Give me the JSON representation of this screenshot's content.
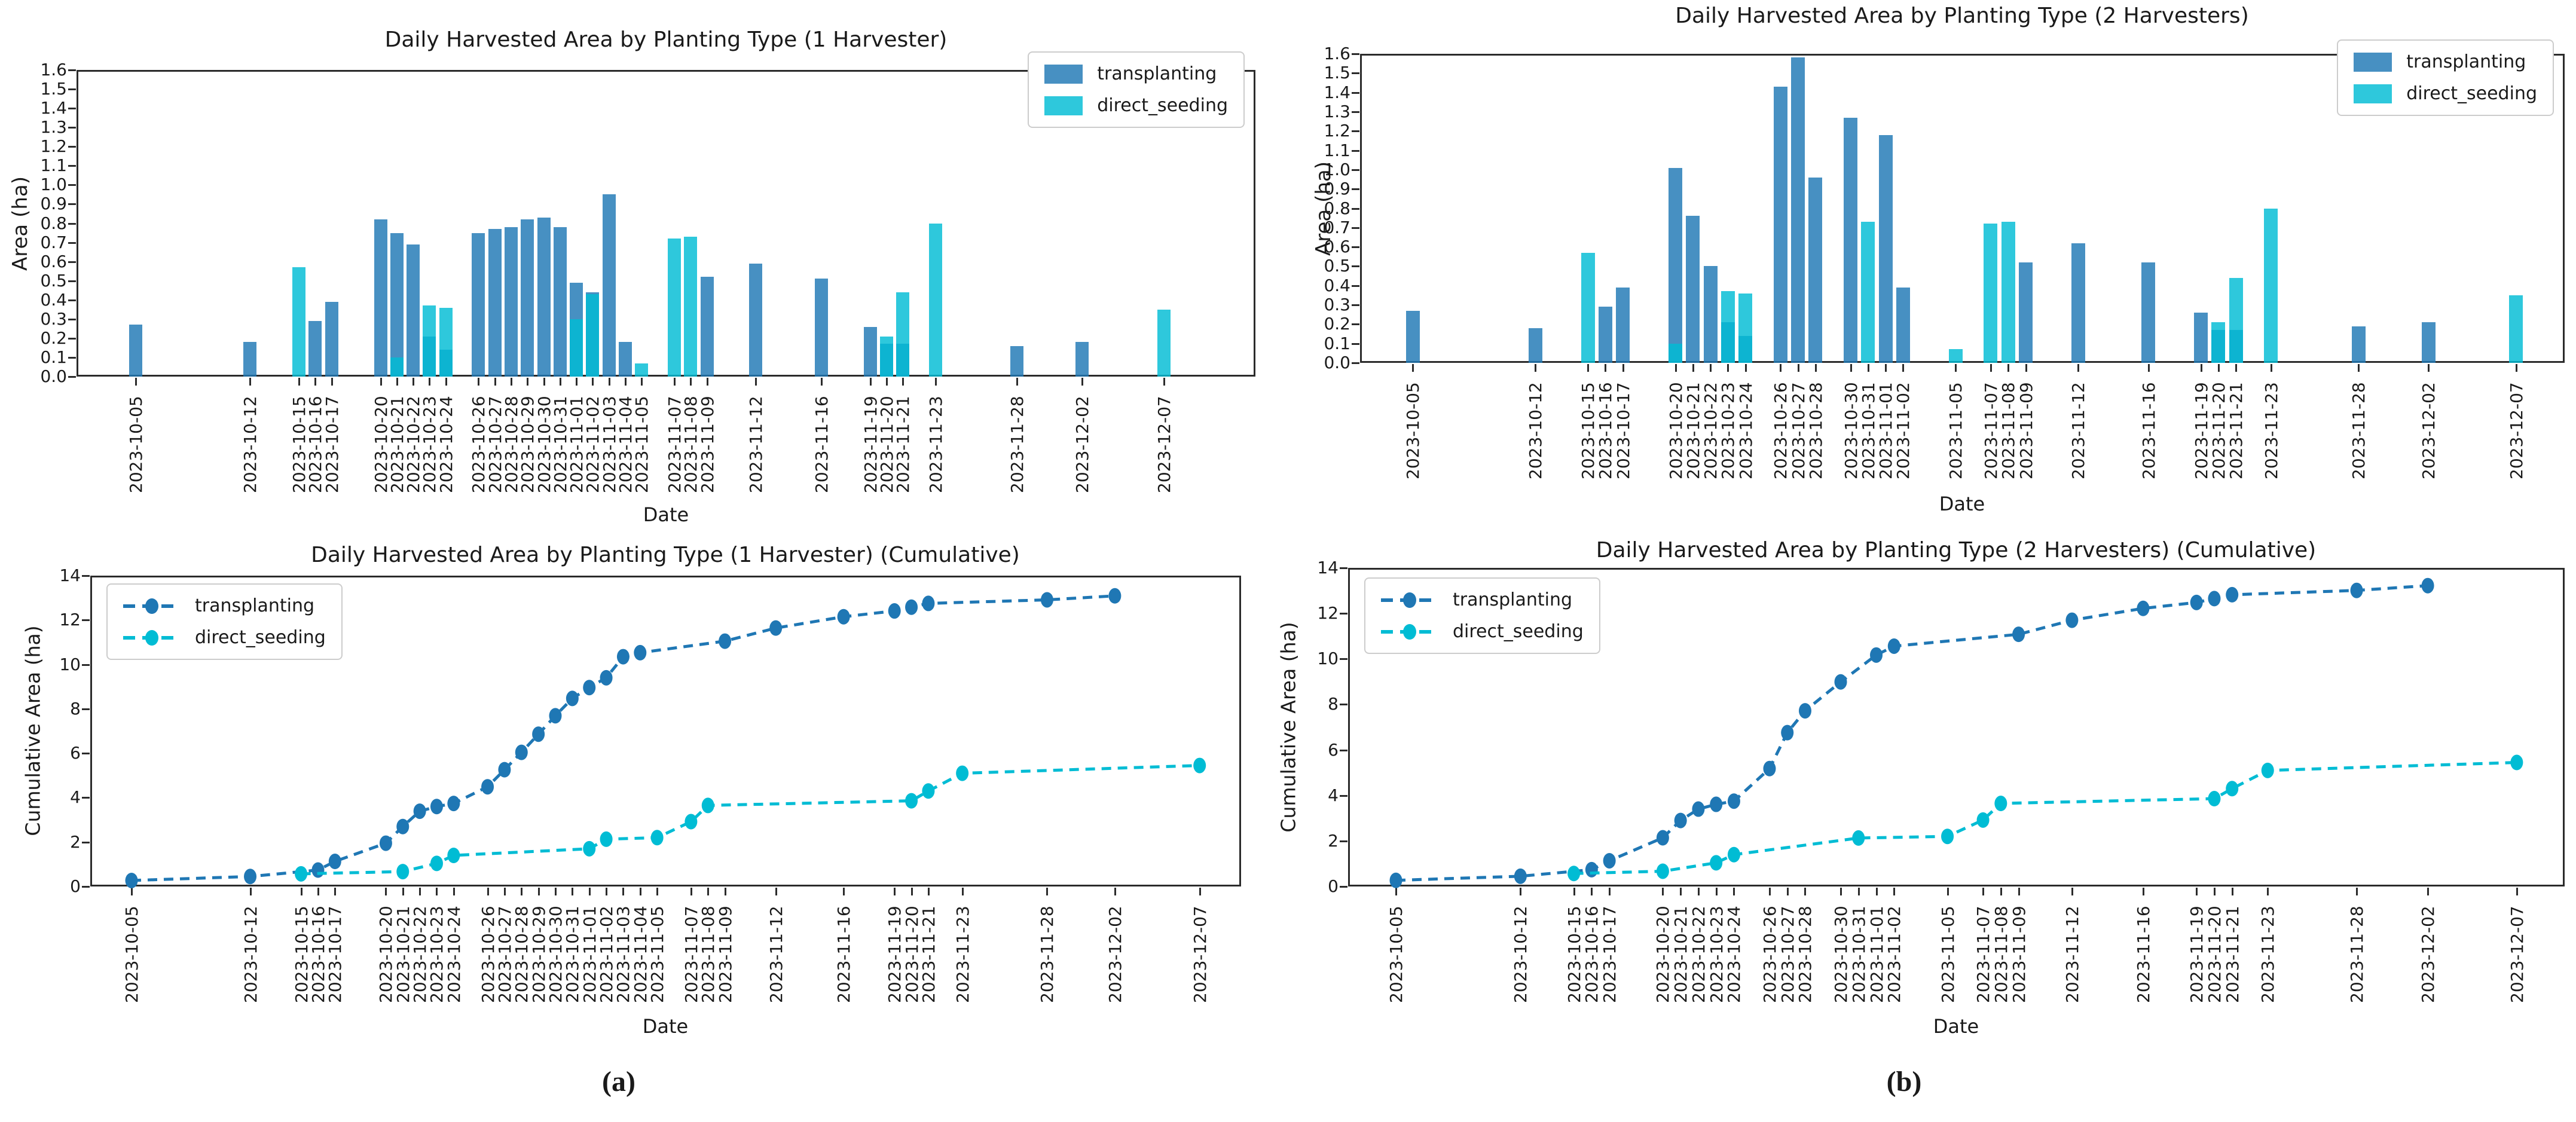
{
  "figure": {
    "captions": [
      "(a)",
      "(b)"
    ],
    "background": "#ffffff",
    "colors": {
      "transplanting": "#1f77b4",
      "direct_seeding": "#00bcd4"
    }
  },
  "chart_data": [
    {
      "type": "bar",
      "title": "Daily Harvested Area by Planting Type (1 Harvester)",
      "xlabel": "Date",
      "ylabel": "Area (ha)",
      "ylim": [
        0,
        1.6
      ],
      "yticks": [
        "0.0",
        "0.1",
        "0.2",
        "0.3",
        "0.4",
        "0.5",
        "0.6",
        "0.7",
        "0.8",
        "0.9",
        "1.0",
        "1.1",
        "1.2",
        "1.3",
        "1.4",
        "1.5",
        "1.6"
      ],
      "legend_position": "top-right",
      "bar_mode": "overlay",
      "bar_opacity": 0.82,
      "dates": [
        "2023-10-05",
        "2023-10-12",
        "2023-10-15",
        "2023-10-16",
        "2023-10-17",
        "2023-10-20",
        "2023-10-21",
        "2023-10-22",
        "2023-10-23",
        "2023-10-24",
        "2023-10-26",
        "2023-10-27",
        "2023-10-28",
        "2023-10-29",
        "2023-10-30",
        "2023-10-31",
        "2023-11-01",
        "2023-11-02",
        "2023-11-03",
        "2023-11-04",
        "2023-11-05",
        "2023-11-07",
        "2023-11-08",
        "2023-11-09",
        "2023-11-12",
        "2023-11-16",
        "2023-11-19",
        "2023-11-20",
        "2023-11-21",
        "2023-11-23",
        "2023-11-28",
        "2023-12-02",
        "2023-12-07"
      ],
      "series": [
        {
          "name": "transplanting",
          "color": "#1f77b4",
          "values": [
            0.27,
            0.18,
            0,
            0.29,
            0.39,
            0.82,
            0.75,
            0.69,
            0.21,
            0.14,
            0.75,
            0.77,
            0.78,
            0.82,
            0.83,
            0.78,
            0.49,
            0.44,
            0.95,
            0.18,
            0,
            0,
            0,
            0.52,
            0.59,
            0.51,
            0.26,
            0.17,
            0.17,
            0,
            0.16,
            0.18,
            0
          ]
        },
        {
          "name": "direct_seeding",
          "color": "#00bcd4",
          "values": [
            0,
            0,
            0.57,
            0,
            0,
            0,
            0.1,
            0,
            0.37,
            0.36,
            0,
            0,
            0,
            0,
            0,
            0,
            0.3,
            0.43,
            0,
            0,
            0.07,
            0.72,
            0.73,
            0,
            0,
            0,
            0,
            0.21,
            0.44,
            0.8,
            0,
            0,
            0.35
          ]
        }
      ]
    },
    {
      "type": "bar",
      "title": "Daily Harvested Area by Planting Type (2 Harvesters)",
      "xlabel": "Date",
      "ylabel": "Area (ha)",
      "ylim": [
        0,
        1.6
      ],
      "yticks": [
        "0.0",
        "0.1",
        "0.2",
        "0.3",
        "0.4",
        "0.5",
        "0.6",
        "0.7",
        "0.8",
        "0.9",
        "1.0",
        "1.1",
        "1.2",
        "1.3",
        "1.4",
        "1.5",
        "1.6"
      ],
      "legend_position": "top-right",
      "bar_mode": "overlay",
      "bar_opacity": 0.82,
      "dates": [
        "2023-10-05",
        "2023-10-12",
        "2023-10-15",
        "2023-10-16",
        "2023-10-17",
        "2023-10-20",
        "2023-10-21",
        "2023-10-22",
        "2023-10-23",
        "2023-10-24",
        "2023-10-26",
        "2023-10-27",
        "2023-10-28",
        "2023-10-30",
        "2023-10-31",
        "2023-11-01",
        "2023-11-02",
        "2023-11-05",
        "2023-11-07",
        "2023-11-08",
        "2023-11-09",
        "2023-11-12",
        "2023-11-16",
        "2023-11-19",
        "2023-11-20",
        "2023-11-21",
        "2023-11-23",
        "2023-11-28",
        "2023-12-02",
        "2023-12-07"
      ],
      "series": [
        {
          "name": "transplanting",
          "color": "#1f77b4",
          "values": [
            0.27,
            0.18,
            0,
            0.29,
            0.39,
            1.01,
            0.76,
            0.5,
            0.21,
            0.14,
            1.43,
            1.58,
            0.96,
            1.27,
            0,
            1.18,
            0.39,
            0,
            0,
            0,
            0.52,
            0.62,
            0.52,
            0.26,
            0.17,
            0.17,
            0,
            0.19,
            0.21,
            0
          ]
        },
        {
          "name": "direct_seeding",
          "color": "#00bcd4",
          "values": [
            0,
            0,
            0.57,
            0,
            0,
            0.1,
            0,
            0,
            0.37,
            0.36,
            0,
            0,
            0,
            0,
            0.73,
            0,
            0,
            0.07,
            0.72,
            0.73,
            0,
            0,
            0,
            0,
            0.21,
            0.44,
            0.8,
            0,
            0,
            0.35
          ]
        }
      ]
    },
    {
      "type": "line",
      "title": "Daily Harvested Area by Planting Type (1 Harvester) (Cumulative)",
      "xlabel": "Date",
      "ylabel": "Cumulative Area (ha)",
      "ylim": [
        0,
        14
      ],
      "yticks": [
        "0",
        "2",
        "4",
        "6",
        "8",
        "10",
        "12",
        "14"
      ],
      "legend_position": "top-left",
      "line_style": "dashed",
      "marker": "circle",
      "dates": [
        "2023-10-05",
        "2023-10-12",
        "2023-10-15",
        "2023-10-16",
        "2023-10-17",
        "2023-10-20",
        "2023-10-21",
        "2023-10-22",
        "2023-10-23",
        "2023-10-24",
        "2023-10-26",
        "2023-10-27",
        "2023-10-28",
        "2023-10-29",
        "2023-10-30",
        "2023-10-31",
        "2023-11-01",
        "2023-11-02",
        "2023-11-03",
        "2023-11-04",
        "2023-11-05",
        "2023-11-07",
        "2023-11-08",
        "2023-11-09",
        "2023-11-12",
        "2023-11-16",
        "2023-11-19",
        "2023-11-20",
        "2023-11-21",
        "2023-11-23",
        "2023-11-28",
        "2023-12-02",
        "2023-12-07"
      ],
      "series": [
        {
          "name": "transplanting",
          "color": "#1f77b4",
          "points": [
            [
              "2023-10-05",
              0.27
            ],
            [
              "2023-10-12",
              0.45
            ],
            [
              "2023-10-16",
              0.74
            ],
            [
              "2023-10-17",
              1.13
            ],
            [
              "2023-10-20",
              1.95
            ],
            [
              "2023-10-21",
              2.7
            ],
            [
              "2023-10-22",
              3.39
            ],
            [
              "2023-10-23",
              3.6
            ],
            [
              "2023-10-24",
              3.74
            ],
            [
              "2023-10-26",
              4.49
            ],
            [
              "2023-10-27",
              5.26
            ],
            [
              "2023-10-28",
              6.04
            ],
            [
              "2023-10-29",
              6.86
            ],
            [
              "2023-10-30",
              7.69
            ],
            [
              "2023-10-31",
              8.47
            ],
            [
              "2023-11-01",
              8.96
            ],
            [
              "2023-11-02",
              9.4
            ],
            [
              "2023-11-03",
              10.35
            ],
            [
              "2023-11-04",
              10.53
            ],
            [
              "2023-11-09",
              11.05
            ],
            [
              "2023-11-12",
              11.64
            ],
            [
              "2023-11-16",
              12.15
            ],
            [
              "2023-11-19",
              12.41
            ],
            [
              "2023-11-20",
              12.58
            ],
            [
              "2023-11-21",
              12.75
            ],
            [
              "2023-11-28",
              12.91
            ],
            [
              "2023-12-02",
              13.09
            ]
          ]
        },
        {
          "name": "direct_seeding",
          "color": "#00bcd4",
          "points": [
            [
              "2023-10-15",
              0.57
            ],
            [
              "2023-10-21",
              0.67
            ],
            [
              "2023-10-23",
              1.04
            ],
            [
              "2023-10-24",
              1.4
            ],
            [
              "2023-11-01",
              1.7
            ],
            [
              "2023-11-02",
              2.13
            ],
            [
              "2023-11-05",
              2.2
            ],
            [
              "2023-11-07",
              2.92
            ],
            [
              "2023-11-08",
              3.65
            ],
            [
              "2023-11-20",
              3.86
            ],
            [
              "2023-11-21",
              4.3
            ],
            [
              "2023-11-23",
              5.1
            ],
            [
              "2023-12-07",
              5.45
            ]
          ]
        }
      ]
    },
    {
      "type": "line",
      "title": "Daily Harvested Area by Planting Type (2 Harvesters) (Cumulative)",
      "xlabel": "Date",
      "ylabel": "Cumulative Area (ha)",
      "ylim": [
        0,
        14
      ],
      "yticks": [
        "0",
        "2",
        "4",
        "6",
        "8",
        "10",
        "12",
        "14"
      ],
      "legend_position": "top-left",
      "line_style": "dashed",
      "marker": "circle",
      "dates": [
        "2023-10-05",
        "2023-10-12",
        "2023-10-15",
        "2023-10-16",
        "2023-10-17",
        "2023-10-20",
        "2023-10-21",
        "2023-10-22",
        "2023-10-23",
        "2023-10-24",
        "2023-10-26",
        "2023-10-27",
        "2023-10-28",
        "2023-10-30",
        "2023-10-31",
        "2023-11-01",
        "2023-11-02",
        "2023-11-05",
        "2023-11-07",
        "2023-11-08",
        "2023-11-09",
        "2023-11-12",
        "2023-11-16",
        "2023-11-19",
        "2023-11-20",
        "2023-11-21",
        "2023-11-23",
        "2023-11-28",
        "2023-12-02",
        "2023-12-07"
      ],
      "series": [
        {
          "name": "transplanting",
          "color": "#1f77b4",
          "points": [
            [
              "2023-10-05",
              0.27
            ],
            [
              "2023-10-12",
              0.45
            ],
            [
              "2023-10-16",
              0.74
            ],
            [
              "2023-10-17",
              1.13
            ],
            [
              "2023-10-20",
              2.14
            ],
            [
              "2023-10-21",
              2.9
            ],
            [
              "2023-10-22",
              3.4
            ],
            [
              "2023-10-23",
              3.61
            ],
            [
              "2023-10-24",
              3.75
            ],
            [
              "2023-10-26",
              5.18
            ],
            [
              "2023-10-27",
              6.76
            ],
            [
              "2023-10-28",
              7.72
            ],
            [
              "2023-10-30",
              8.99
            ],
            [
              "2023-11-01",
              10.17
            ],
            [
              "2023-11-02",
              10.56
            ],
            [
              "2023-11-09",
              11.08
            ],
            [
              "2023-11-12",
              11.7
            ],
            [
              "2023-11-16",
              12.22
            ],
            [
              "2023-11-19",
              12.48
            ],
            [
              "2023-11-20",
              12.65
            ],
            [
              "2023-11-21",
              12.82
            ],
            [
              "2023-11-28",
              13.01
            ],
            [
              "2023-12-02",
              13.22
            ]
          ]
        },
        {
          "name": "direct_seeding",
          "color": "#00bcd4",
          "points": [
            [
              "2023-10-15",
              0.57
            ],
            [
              "2023-10-20",
              0.67
            ],
            [
              "2023-10-23",
              1.04
            ],
            [
              "2023-10-24",
              1.4
            ],
            [
              "2023-10-31",
              2.13
            ],
            [
              "2023-11-05",
              2.2
            ],
            [
              "2023-11-07",
              2.92
            ],
            [
              "2023-11-08",
              3.65
            ],
            [
              "2023-11-20",
              3.86
            ],
            [
              "2023-11-21",
              4.3
            ],
            [
              "2023-11-23",
              5.1
            ],
            [
              "2023-12-07",
              5.45
            ]
          ]
        }
      ]
    }
  ]
}
